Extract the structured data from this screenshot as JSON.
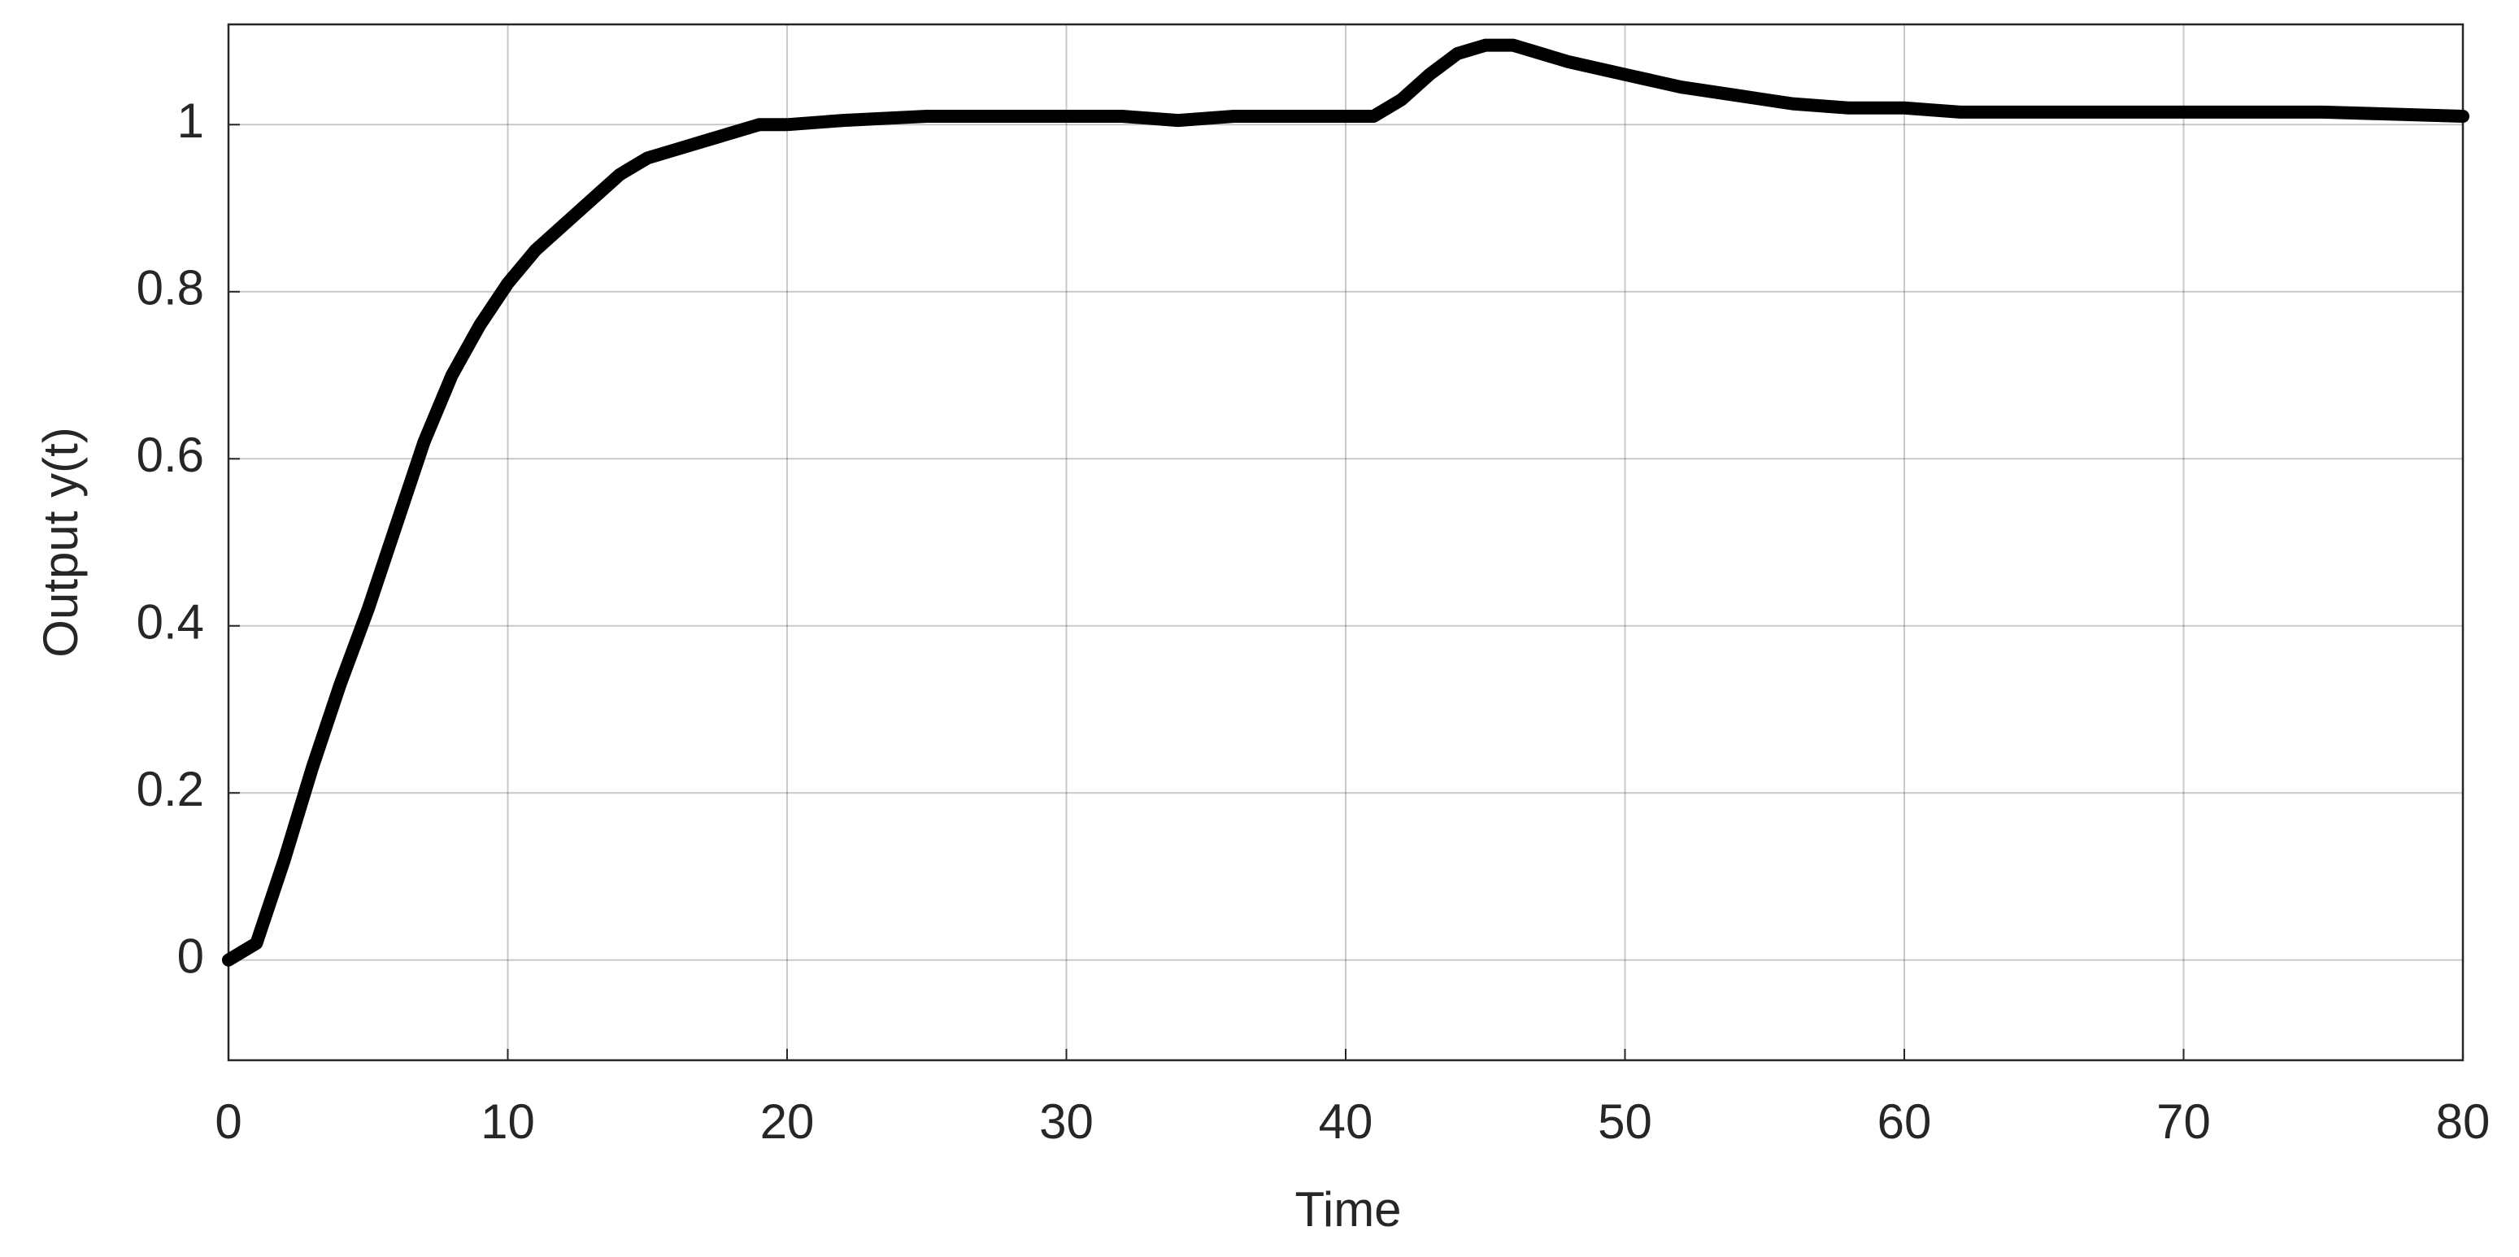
{
  "chart_data": {
    "type": "line",
    "x_label": "Time",
    "y_label": "Output y(t)",
    "x": [
      0,
      1,
      2,
      3,
      4,
      5,
      6,
      7,
      8,
      9,
      10,
      11,
      12,
      13,
      14,
      15,
      16,
      17,
      18,
      19,
      20,
      22,
      25,
      28,
      30,
      32,
      34,
      36,
      38,
      40,
      41,
      42,
      43,
      44,
      45,
      46,
      47,
      48,
      50,
      52,
      54,
      56,
      58,
      60,
      62,
      65,
      70,
      75,
      80
    ],
    "series": [
      {
        "color": "#000000",
        "values": [
          0,
          0.02,
          0.12,
          0.23,
          0.33,
          0.42,
          0.52,
          0.62,
          0.7,
          0.76,
          0.81,
          0.85,
          0.88,
          0.91,
          0.94,
          0.96,
          0.97,
          0.98,
          0.99,
          1.0,
          1.0,
          1.005,
          1.01,
          1.01,
          1.01,
          1.01,
          1.005,
          1.01,
          1.01,
          1.01,
          1.01,
          1.03,
          1.06,
          1.085,
          1.095,
          1.095,
          1.085,
          1.075,
          1.06,
          1.045,
          1.035,
          1.025,
          1.02,
          1.02,
          1.015,
          1.015,
          1.015,
          1.015,
          1.01
        ]
      }
    ],
    "xlim": [
      0,
      80
    ],
    "xticks": [
      0,
      10,
      20,
      30,
      40,
      50,
      60,
      70,
      80
    ],
    "ylim": [
      -0.12,
      1.12
    ],
    "yticks": [
      0,
      0.2,
      0.4,
      0.6,
      0.8,
      1
    ],
    "grid": true
  }
}
